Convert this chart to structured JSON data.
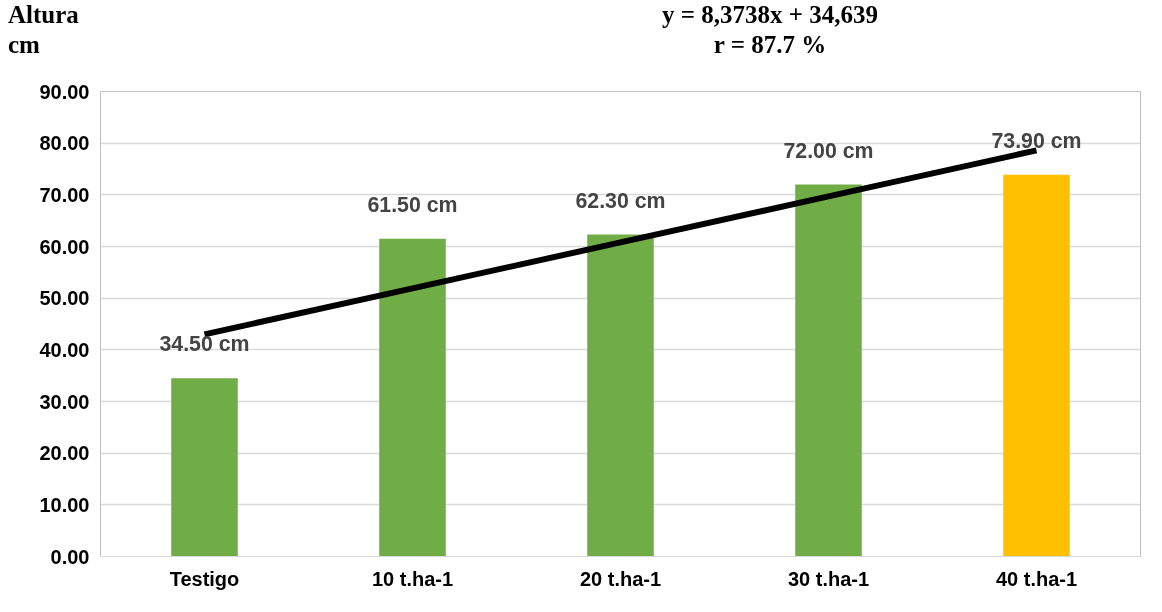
{
  "chart_data": {
    "type": "bar",
    "ylabel": "Altura\ncm",
    "annotations": [
      "y = 8,3738x + 34,639\nr = 87.7 %"
    ],
    "categories": [
      "Testigo",
      "10 t.ha-1",
      "20 t.ha-1",
      "30 t.ha-1",
      "40 t.ha-1"
    ],
    "series": [
      {
        "colors": [
          "#70ad47",
          "#70ad47",
          "#70ad47",
          "#70ad47",
          "#ffc000"
        ],
        "values": [
          34.5,
          61.5,
          62.3,
          72.0,
          73.9
        ],
        "value_labels": [
          "34.50 cm",
          "61.50 cm",
          "62.30 cm",
          "72.00 cm",
          "73.90 cm"
        ]
      },
      {
        "type": "line",
        "color": "#000000",
        "values": [
          43.0,
          51.9,
          60.8,
          69.7,
          78.6
        ]
      }
    ],
    "ylim": [
      0,
      90
    ],
    "yticks": [
      {
        "value": 0,
        "label": "0.00"
      },
      {
        "value": 10,
        "label": "10.00"
      },
      {
        "value": 20,
        "label": "20.00"
      },
      {
        "value": 30,
        "label": "30.00"
      },
      {
        "value": 40,
        "label": "40.00"
      },
      {
        "value": 50,
        "label": "50.00"
      },
      {
        "value": 60,
        "label": "60.00"
      },
      {
        "value": 70,
        "label": "70.00"
      },
      {
        "value": 80,
        "label": "80.00"
      },
      {
        "value": 90,
        "label": "90.00"
      }
    ],
    "grid": "y",
    "line_style": "solid",
    "marker": "none"
  }
}
